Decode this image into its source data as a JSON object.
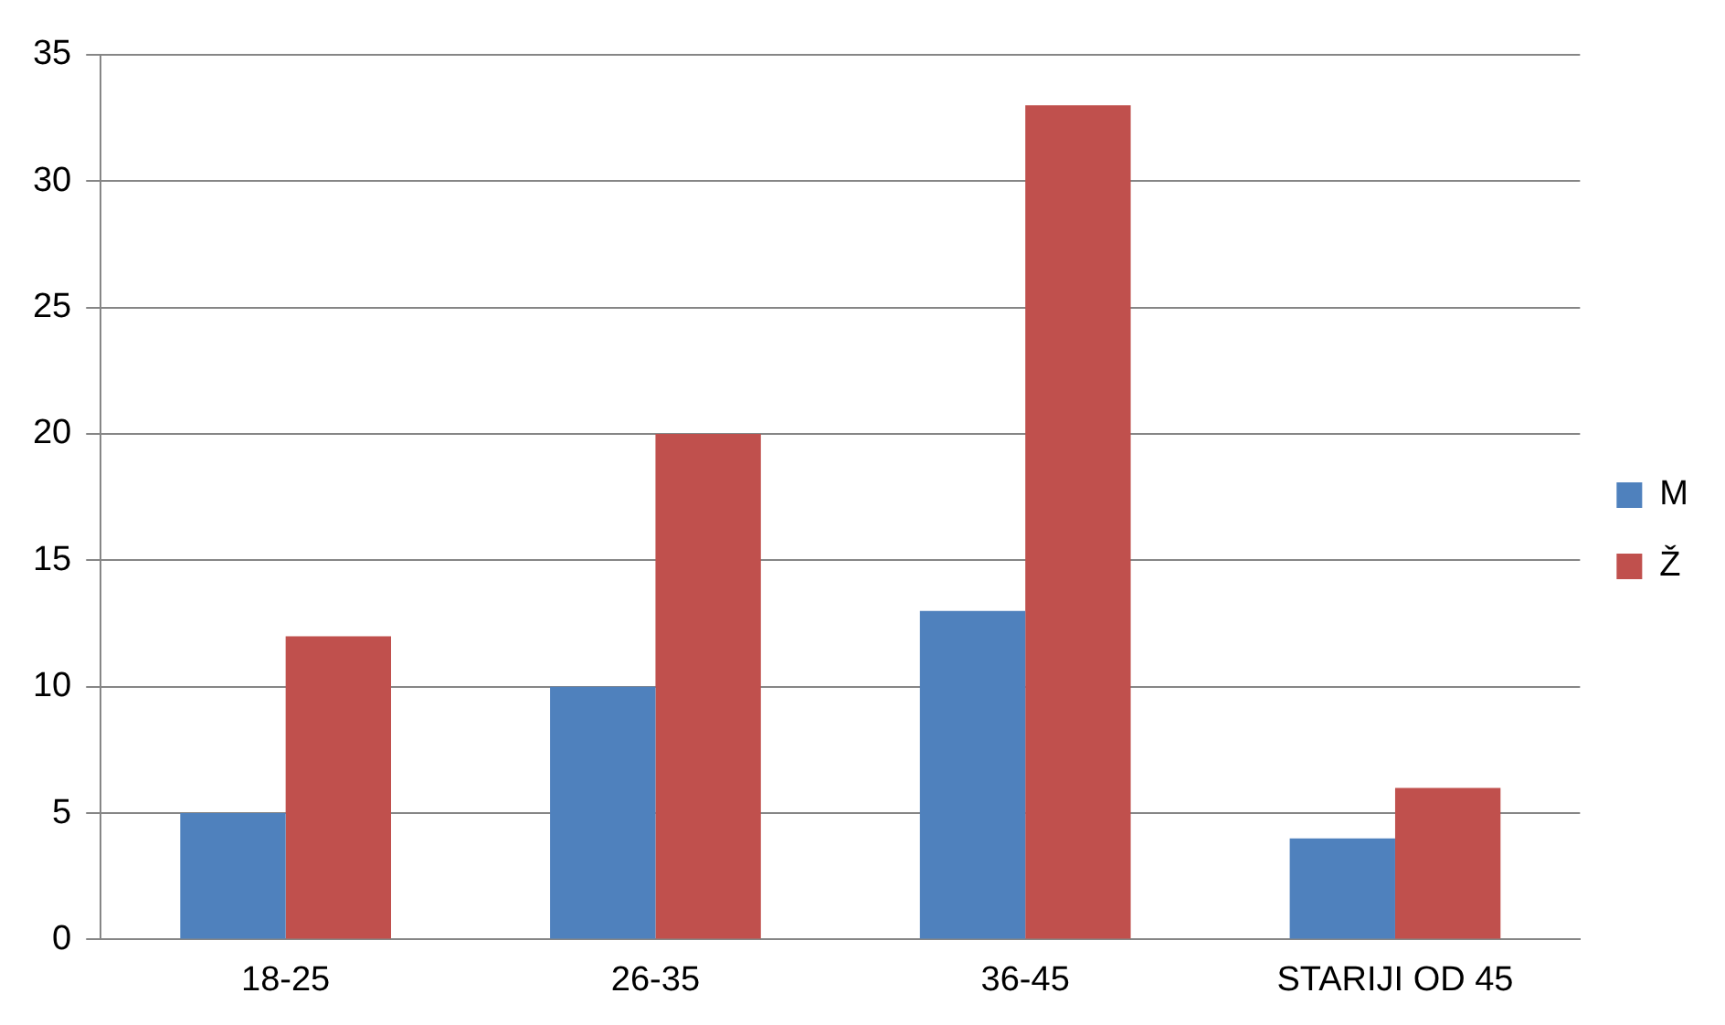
{
  "chart_data": {
    "type": "bar",
    "categories": [
      "18-25",
      "26-35",
      "36-45",
      "STARIJI OD 45"
    ],
    "series": [
      {
        "name": "M",
        "color": "#4f81bd",
        "values": [
          5,
          10,
          13,
          4
        ]
      },
      {
        "name": "Ž",
        "color": "#c0504d",
        "values": [
          12,
          20,
          33,
          6
        ]
      }
    ],
    "ylim": [
      0,
      35
    ],
    "yticks": [
      0,
      5,
      10,
      15,
      20,
      25,
      30,
      35
    ],
    "grid": "y",
    "legend": "right"
  }
}
